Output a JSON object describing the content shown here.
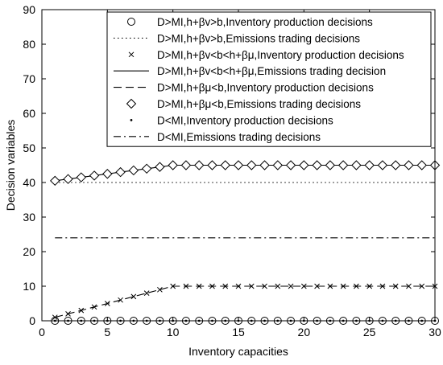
{
  "chart_data": {
    "type": "line",
    "xlabel": "Inventory capacities",
    "ylabel": "Decision variables",
    "xlim": [
      0,
      30
    ],
    "ylim": [
      0,
      90
    ],
    "xticks": [
      0,
      5,
      10,
      15,
      20,
      25,
      30
    ],
    "yticks": [
      0,
      10,
      20,
      30,
      40,
      50,
      60,
      70,
      80,
      90
    ],
    "grid": false,
    "legend_position": "top-right",
    "x": [
      1,
      2,
      3,
      4,
      5,
      6,
      7,
      8,
      9,
      10,
      11,
      12,
      13,
      14,
      15,
      16,
      17,
      18,
      19,
      20,
      21,
      22,
      23,
      24,
      25,
      26,
      27,
      28,
      29,
      30
    ],
    "series": [
      {
        "name": "D>MI,h+βv>b,Inventory production decisions",
        "style": "circle-markers",
        "values": [
          0,
          0,
          0,
          0,
          0,
          0,
          0,
          0,
          0,
          0,
          0,
          0,
          0,
          0,
          0,
          0,
          0,
          0,
          0,
          0,
          0,
          0,
          0,
          0,
          0,
          0,
          0,
          0,
          0,
          0
        ]
      },
      {
        "name": "D>MI,h+βv>b,Emissions trading decisions",
        "style": "dotted",
        "values": [
          40,
          40,
          40,
          40,
          40,
          40,
          40,
          40,
          40,
          40,
          40,
          40,
          40,
          40,
          40,
          40,
          40,
          40,
          40,
          40,
          40,
          40,
          40,
          40,
          40,
          40,
          40,
          40,
          40,
          40
        ]
      },
      {
        "name": "D>MI,h+βv<b<h+βμ,Inventory production decisions",
        "style": "x-markers",
        "values": [
          1,
          2,
          3,
          4,
          5,
          6,
          7,
          8,
          9,
          10,
          10,
          10,
          10,
          10,
          10,
          10,
          10,
          10,
          10,
          10,
          10,
          10,
          10,
          10,
          10,
          10,
          10,
          10,
          10,
          10
        ]
      },
      {
        "name": "D>MI,h+βv<b<h+βμ,Emissions trading decision",
        "style": "solid",
        "values": [
          40.5,
          41,
          41.5,
          42,
          42.5,
          43,
          43.5,
          44,
          44.5,
          45,
          45,
          45,
          45,
          45,
          45,
          45,
          45,
          45,
          45,
          45,
          45,
          45,
          45,
          45,
          45,
          45,
          45,
          45,
          45,
          45
        ]
      },
      {
        "name": "D>MI,h+βμ<b,Inventory production decisions",
        "style": "dashed",
        "values": [
          1,
          2,
          3,
          4,
          5,
          6,
          7,
          8,
          9,
          10,
          10,
          10,
          10,
          10,
          10,
          10,
          10,
          10,
          10,
          10,
          10,
          10,
          10,
          10,
          10,
          10,
          10,
          10,
          10,
          10
        ]
      },
      {
        "name": "D>MI,h+βμ<b,Emissions trading decisions",
        "style": "diamond-markers",
        "values": [
          40.5,
          41,
          41.5,
          42,
          42.5,
          43,
          43.5,
          44,
          44.5,
          45,
          45,
          45,
          45,
          45,
          45,
          45,
          45,
          45,
          45,
          45,
          45,
          45,
          45,
          45,
          45,
          45,
          45,
          45,
          45,
          45
        ]
      },
      {
        "name": "D<MI,Inventory production decisions",
        "style": "dot-markers",
        "values": [
          0,
          0,
          0,
          0,
          0,
          0,
          0,
          0,
          0,
          0,
          0,
          0,
          0,
          0,
          0,
          0,
          0,
          0,
          0,
          0,
          0,
          0,
          0,
          0,
          0,
          0,
          0,
          0,
          0,
          0
        ]
      },
      {
        "name": "D<MI,Emissions trading decisions",
        "style": "dash-dot",
        "values": [
          24,
          24,
          24,
          24,
          24,
          24,
          24,
          24,
          24,
          24,
          24,
          24,
          24,
          24,
          24,
          24,
          24,
          24,
          24,
          24,
          24,
          24,
          24,
          24,
          24,
          24,
          24,
          24,
          24,
          24
        ]
      }
    ]
  }
}
